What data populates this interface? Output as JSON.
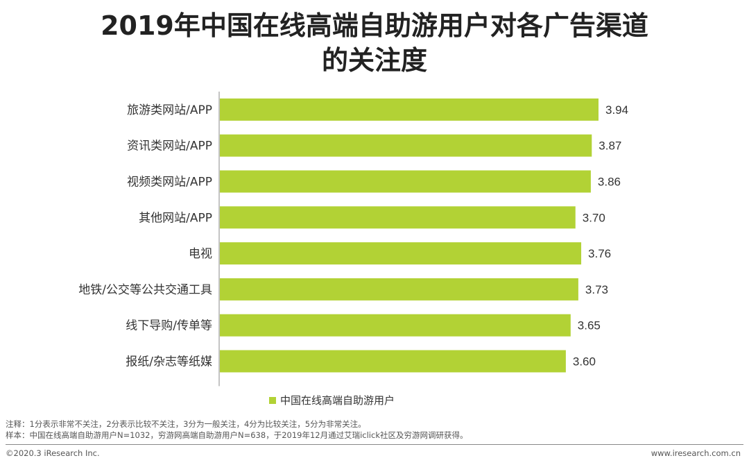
{
  "title_line1": "2019年中国在线高端自助游用户对各广告渠道",
  "title_line2": "的关注度",
  "chart_data": {
    "type": "bar",
    "orientation": "horizontal",
    "categories": [
      "旅游类网站/APP",
      "资讯类网站/APP",
      "视频类网站/APP",
      "其他网站/APP",
      "电视",
      "地铁/公交等公共交通工具",
      "线下导购/传单等",
      "报纸/杂志等纸媒"
    ],
    "series": [
      {
        "name": "中国在线高端自助游用户",
        "values": [
          3.94,
          3.87,
          3.86,
          3.7,
          3.76,
          3.73,
          3.65,
          3.6
        ]
      }
    ],
    "value_labels": [
      "3.94",
      "3.87",
      "3.86",
      "3.70",
      "3.76",
      "3.73",
      "3.65",
      "3.60"
    ],
    "xlim": [
      0,
      4.2
    ],
    "grid": false,
    "legend_position": "bottom",
    "bar_color": "#b2d235"
  },
  "notes": {
    "line1": "注释：1分表示非常不关注，2分表示比较不关注，3分为一般关注，4分为比较关注，5分为非常关注。",
    "line2": "样本：中国在线高端自助游用户N=1032，穷游网高端自助游用户N=638，于2019年12月通过艾瑞iclick社区及穷游网调研获得。"
  },
  "footer": {
    "copyright": "©2020.3 iResearch Inc.",
    "website": "www.iresearch.com.cn"
  }
}
